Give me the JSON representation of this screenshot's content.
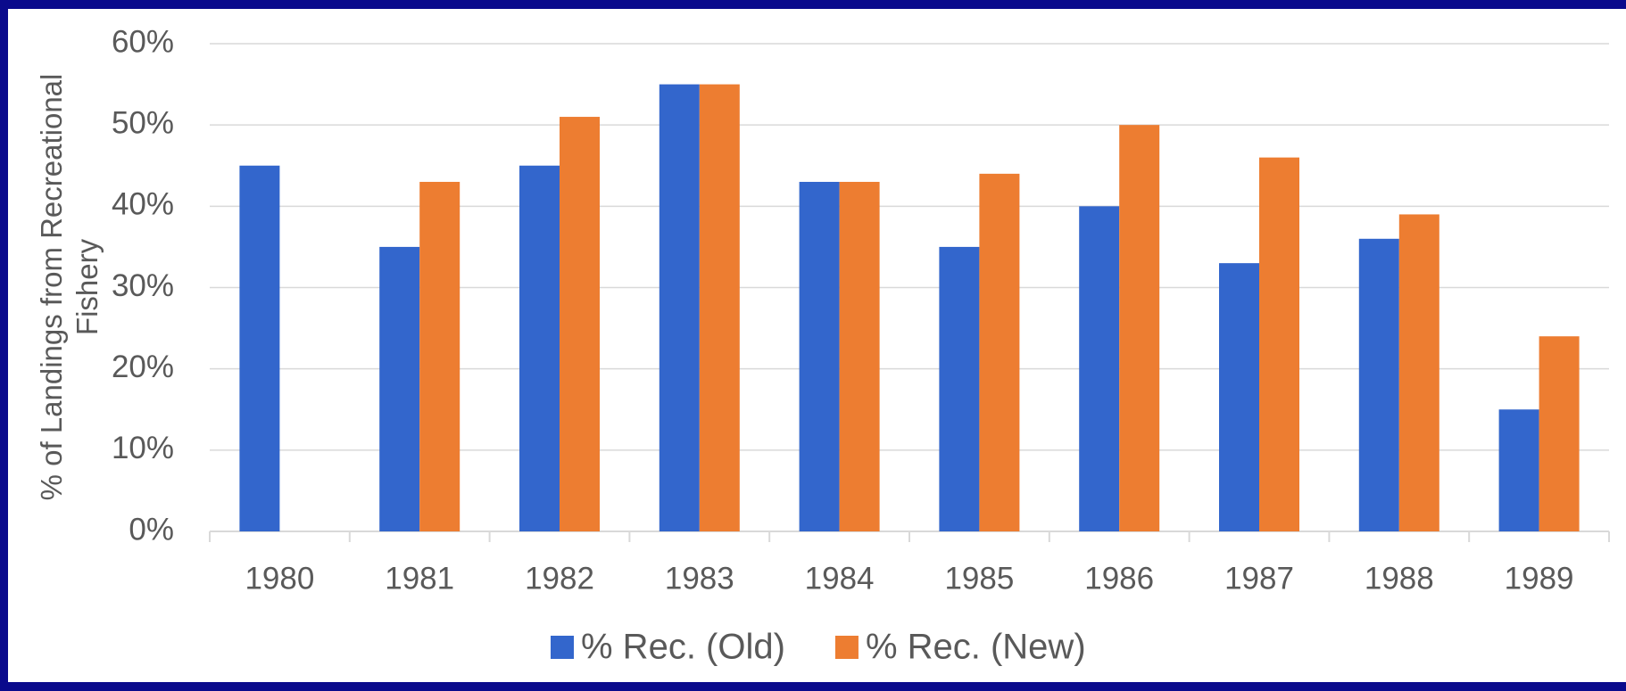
{
  "chart_data": {
    "type": "bar",
    "y_label": "% of Landings from Recreational Fishery",
    "categories": [
      "1980",
      "1981",
      "1982",
      "1983",
      "1984",
      "1985",
      "1986",
      "1987",
      "1988",
      "1989"
    ],
    "series": [
      {
        "name": "% Rec. (Old)",
        "color": "#3366cc",
        "values": [
          45,
          35,
          45,
          55,
          43,
          35,
          40,
          33,
          36,
          15
        ]
      },
      {
        "name": "% Rec. (New)",
        "color": "#ed7d31",
        "values": [
          null,
          43,
          51,
          55,
          43,
          44,
          50,
          46,
          39,
          24
        ]
      }
    ],
    "ylim": [
      0,
      60
    ],
    "yticks": [
      {
        "value": 0,
        "label": "0%"
      },
      {
        "value": 10,
        "label": "10%"
      },
      {
        "value": 20,
        "label": "20%"
      },
      {
        "value": 30,
        "label": "30%"
      },
      {
        "value": 40,
        "label": "40%"
      },
      {
        "value": 50,
        "label": "50%"
      },
      {
        "value": 60,
        "label": "60%"
      }
    ],
    "grid": true,
    "legend": "bottom"
  }
}
